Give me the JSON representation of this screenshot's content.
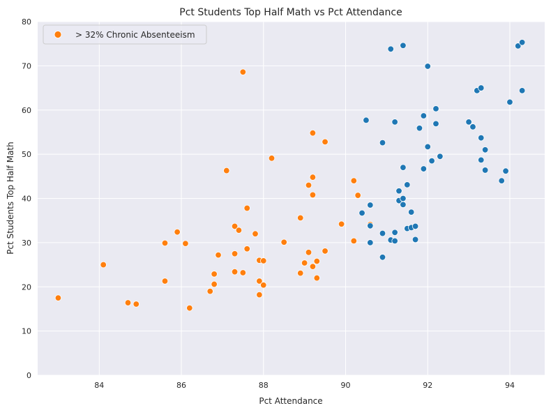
{
  "chart_data": {
    "type": "scatter",
    "title": "Pct Students Top Half Math vs Pct Attendance",
    "xlabel": "Pct Attendance",
    "ylabel": "Pct Students Top Half Math",
    "xlim": [
      82.5,
      94.85
    ],
    "ylim": [
      0,
      80
    ],
    "xticks": [
      84,
      86,
      88,
      90,
      92,
      94
    ],
    "yticks": [
      0,
      10,
      20,
      30,
      40,
      50,
      60,
      70,
      80
    ],
    "grid": true,
    "legend_position": "top-left",
    "colors": {
      "background": "#eaeaf2",
      "grid": "#ffffff",
      "orange": "#ff7f0e",
      "blue": "#1f77b4"
    },
    "series": [
      {
        "name": "> 32% Chronic Absenteeism",
        "color": "#ff7f0e",
        "points": [
          [
            83.0,
            17.5
          ],
          [
            84.1,
            25.0
          ],
          [
            84.7,
            16.4
          ],
          [
            84.9,
            16.1
          ],
          [
            85.6,
            21.3
          ],
          [
            85.6,
            29.9
          ],
          [
            85.9,
            32.4
          ],
          [
            86.1,
            29.8
          ],
          [
            86.2,
            15.2
          ],
          [
            86.7,
            19.0
          ],
          [
            86.8,
            20.6
          ],
          [
            86.8,
            22.9
          ],
          [
            86.9,
            27.2
          ],
          [
            87.1,
            46.3
          ],
          [
            87.3,
            27.5
          ],
          [
            87.3,
            23.4
          ],
          [
            87.3,
            33.7
          ],
          [
            87.4,
            32.8
          ],
          [
            87.5,
            23.2
          ],
          [
            87.5,
            68.6
          ],
          [
            87.6,
            28.6
          ],
          [
            87.6,
            37.8
          ],
          [
            87.8,
            32.0
          ],
          [
            87.9,
            18.2
          ],
          [
            87.9,
            21.3
          ],
          [
            87.9,
            26.0
          ],
          [
            88.0,
            20.4
          ],
          [
            88.0,
            25.9
          ],
          [
            88.2,
            49.1
          ],
          [
            88.5,
            30.1
          ],
          [
            88.9,
            23.1
          ],
          [
            88.9,
            35.6
          ],
          [
            89.0,
            25.4
          ],
          [
            89.1,
            27.8
          ],
          [
            89.1,
            43.0
          ],
          [
            89.2,
            24.6
          ],
          [
            89.2,
            54.8
          ],
          [
            89.2,
            40.8
          ],
          [
            89.2,
            44.8
          ],
          [
            89.3,
            22.0
          ],
          [
            89.3,
            25.8
          ],
          [
            89.5,
            52.8
          ],
          [
            89.5,
            28.1
          ],
          [
            89.9,
            34.2
          ],
          [
            90.2,
            30.4
          ],
          [
            90.2,
            44.0
          ],
          [
            90.3,
            40.7
          ],
          [
            90.6,
            34.1
          ]
        ]
      },
      {
        "name": "",
        "color": "#1f77b4",
        "points": [
          [
            90.4,
            36.7
          ],
          [
            90.5,
            57.7
          ],
          [
            90.6,
            38.5
          ],
          [
            90.6,
            33.8
          ],
          [
            90.6,
            30.0
          ],
          [
            90.9,
            32.1
          ],
          [
            90.9,
            26.7
          ],
          [
            90.9,
            52.6
          ],
          [
            91.1,
            73.8
          ],
          [
            91.1,
            30.6
          ],
          [
            91.2,
            32.3
          ],
          [
            91.2,
            30.4
          ],
          [
            91.2,
            57.3
          ],
          [
            91.3,
            41.7
          ],
          [
            91.3,
            39.5
          ],
          [
            91.4,
            74.6
          ],
          [
            91.4,
            47.0
          ],
          [
            91.4,
            40.0
          ],
          [
            91.4,
            38.6
          ],
          [
            91.5,
            43.1
          ],
          [
            91.5,
            33.2
          ],
          [
            91.6,
            36.9
          ],
          [
            91.6,
            33.4
          ],
          [
            91.7,
            33.7
          ],
          [
            91.7,
            30.7
          ],
          [
            91.8,
            55.9
          ],
          [
            91.9,
            46.7
          ],
          [
            91.9,
            58.7
          ],
          [
            92.0,
            69.9
          ],
          [
            92.0,
            51.7
          ],
          [
            92.1,
            48.5
          ],
          [
            92.2,
            56.9
          ],
          [
            92.2,
            60.3
          ],
          [
            92.3,
            49.5
          ],
          [
            93.0,
            57.3
          ],
          [
            93.1,
            56.2
          ],
          [
            93.2,
            64.4
          ],
          [
            93.3,
            65.0
          ],
          [
            93.3,
            48.7
          ],
          [
            93.3,
            53.7
          ],
          [
            93.4,
            51.0
          ],
          [
            93.4,
            46.4
          ],
          [
            93.8,
            44.0
          ],
          [
            93.9,
            46.2
          ],
          [
            94.0,
            61.8
          ],
          [
            94.2,
            74.5
          ],
          [
            94.3,
            75.3
          ],
          [
            94.3,
            64.4
          ]
        ]
      }
    ]
  }
}
